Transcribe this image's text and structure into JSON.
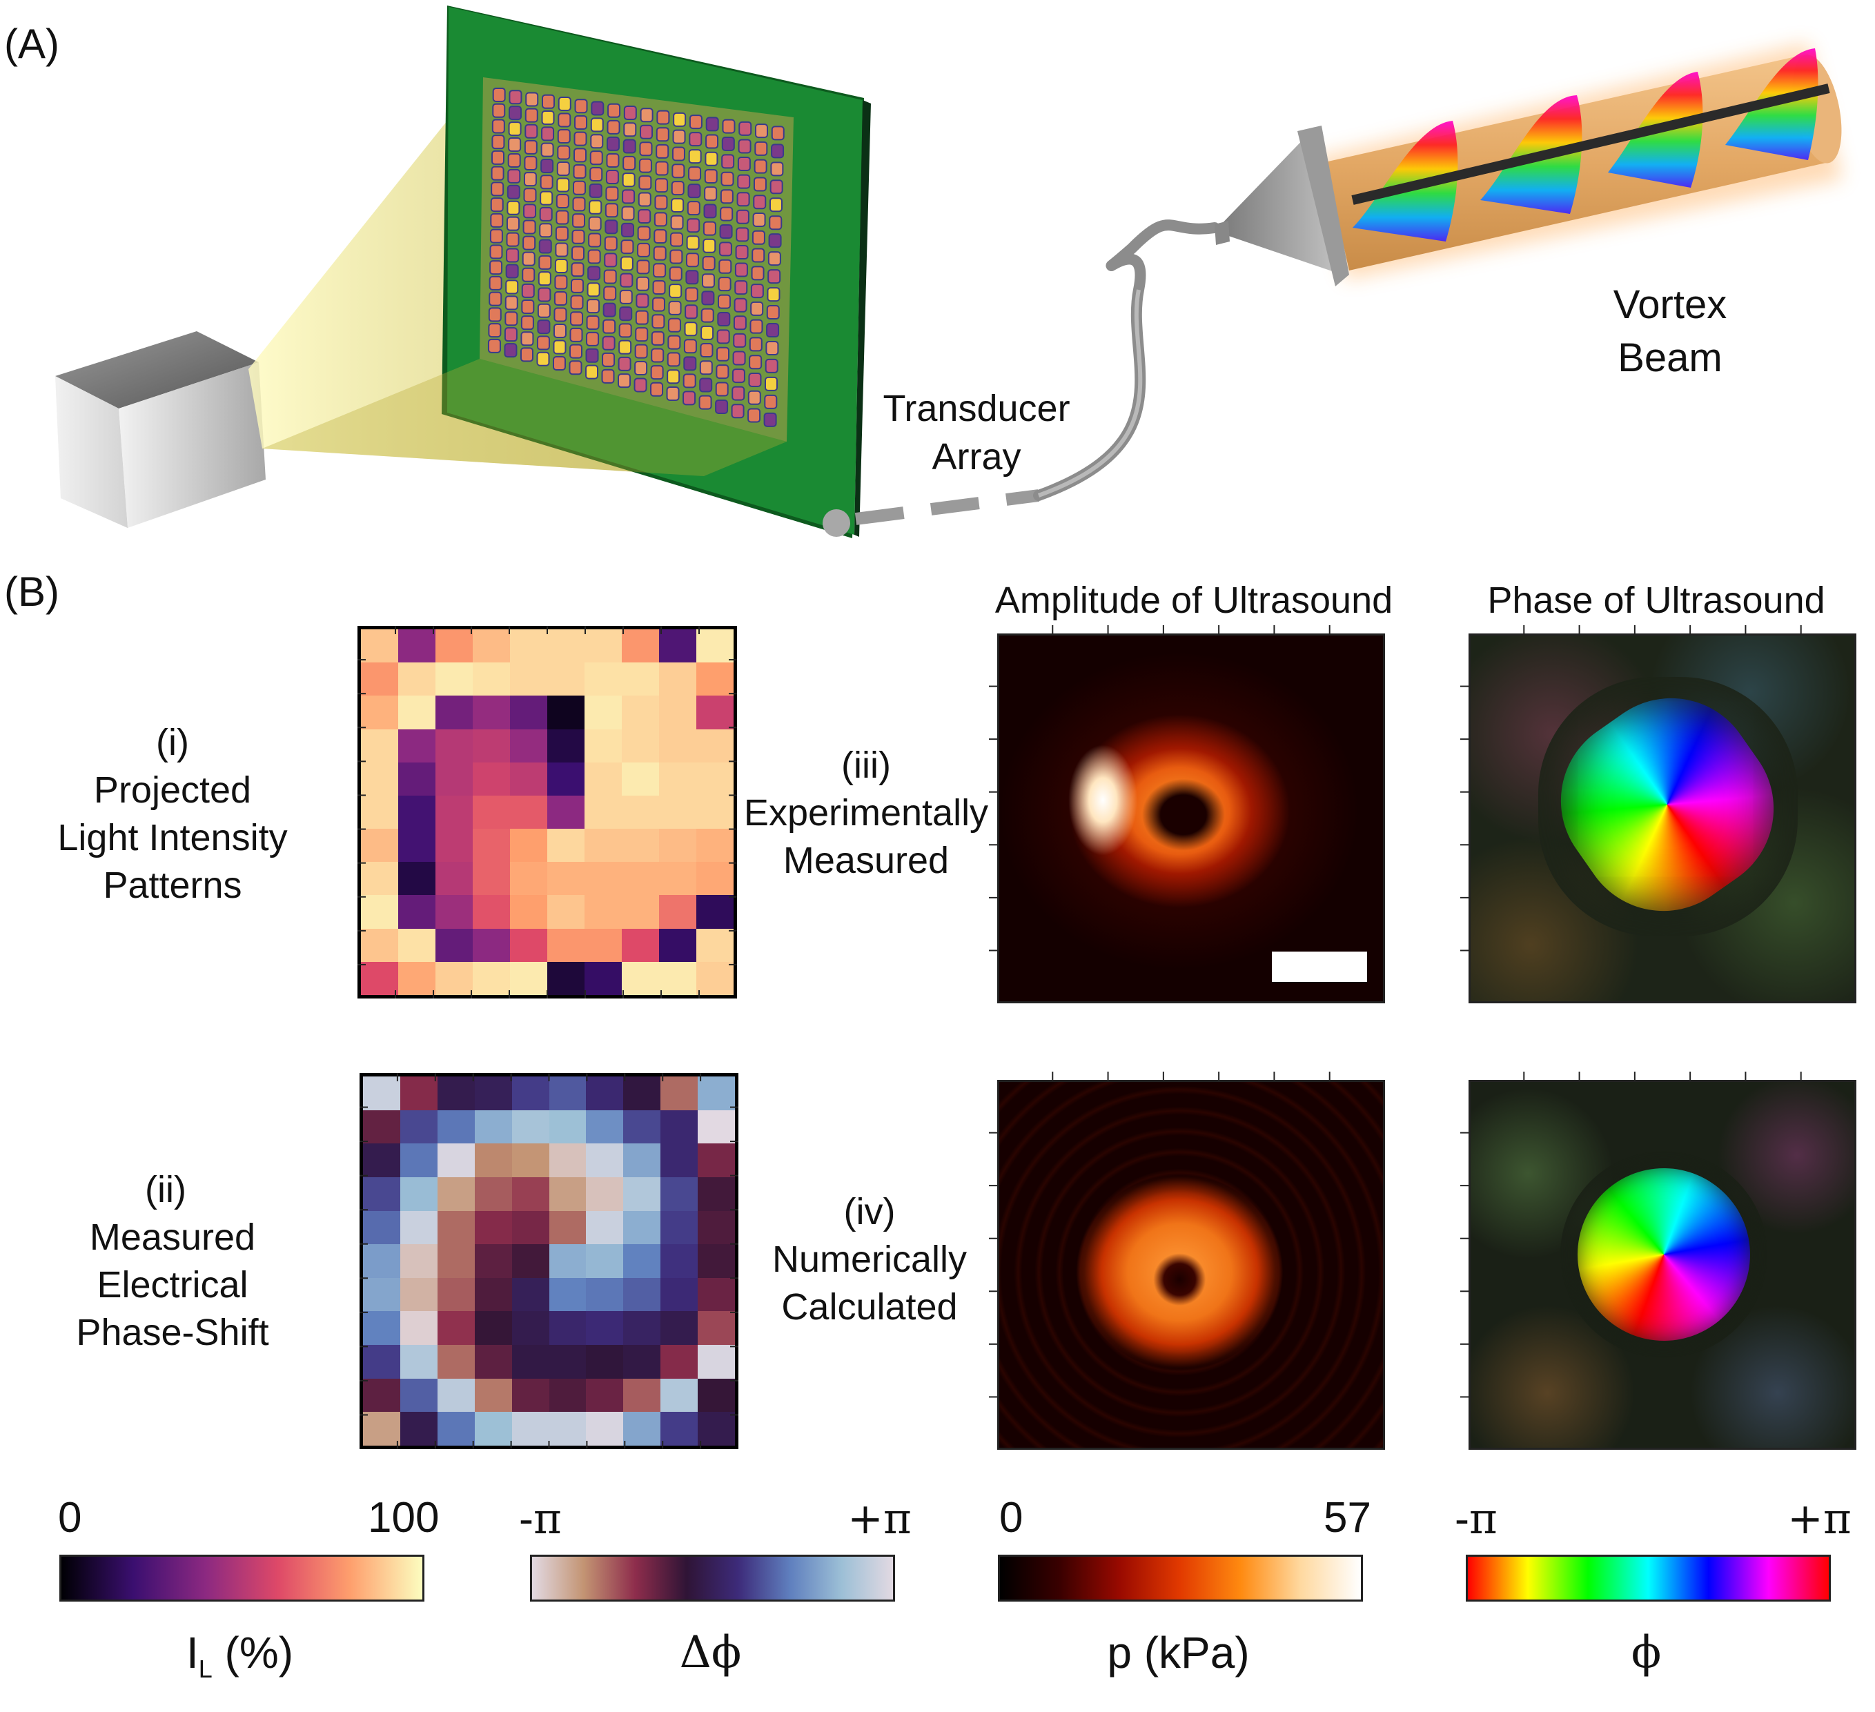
{
  "panel_a": {
    "label": "(A)",
    "transducer_label_1": "Transducer",
    "transducer_label_2": "Array",
    "vortex_label_1": "Vortex",
    "vortex_label_2": "Beam"
  },
  "panel_b": {
    "label": "(B)",
    "col_amplitude": "Amplitude of Ultrasound",
    "col_phase": "Phase of Ultrasound",
    "row_i": [
      "(i)",
      "Projected",
      "Light Intensity",
      "Patterns"
    ],
    "row_ii": [
      "(ii)",
      "Measured",
      "Electrical",
      "Phase-Shift"
    ],
    "row_iii": [
      "(iii)",
      "Experimentally",
      "Measured"
    ],
    "row_iv": [
      "(iv)",
      "Numerically",
      "Calculated"
    ]
  },
  "colorbars": [
    {
      "min": "0",
      "max": "100",
      "title": "I",
      "title_sub": "L",
      "title_rest": " (%)",
      "colors": [
        "#000004",
        "#3b0f70",
        "#8c2981",
        "#de4968",
        "#fe9f6d",
        "#fcfdbf"
      ]
    },
    {
      "min": "-π",
      "max": "+π",
      "title": "Δϕ",
      "colors": [
        "#e2d9e2",
        "#c39473",
        "#8e2d4c",
        "#2f1436",
        "#3d2b7a",
        "#5f7fbe",
        "#9cbfd6",
        "#e2d9e2"
      ]
    },
    {
      "min": "0",
      "max": "57",
      "title": "p (kPa)",
      "colors": [
        "#000000",
        "#3a0000",
        "#9a0a00",
        "#e23a00",
        "#ff8a10",
        "#ffd9a0",
        "#ffffff"
      ]
    },
    {
      "min": "-π",
      "max": "+π",
      "title": "ϕ",
      "colors": [
        "#ff0000",
        "#ffff00",
        "#00ff00",
        "#00ffff",
        "#0000ff",
        "#ff00ff",
        "#ff0000"
      ]
    }
  ],
  "grid_i": [
    [
      88,
      40,
      78,
      86,
      92,
      92,
      92,
      78,
      25,
      96
    ],
    [
      78,
      92,
      96,
      94,
      92,
      92,
      94,
      94,
      90,
      80
    ],
    [
      84,
      96,
      34,
      42,
      30,
      5,
      96,
      92,
      90,
      55
    ],
    [
      92,
      40,
      50,
      52,
      42,
      12,
      94,
      92,
      90,
      90
    ],
    [
      92,
      30,
      50,
      56,
      52,
      20,
      92,
      96,
      92,
      92
    ],
    [
      92,
      22,
      52,
      64,
      64,
      40,
      92,
      92,
      92,
      92
    ],
    [
      86,
      22,
      52,
      66,
      80,
      92,
      88,
      88,
      86,
      84
    ],
    [
      92,
      12,
      50,
      66,
      82,
      84,
      84,
      84,
      84,
      82
    ],
    [
      96,
      30,
      44,
      62,
      80,
      88,
      84,
      84,
      70,
      16
    ],
    [
      88,
      94,
      30,
      40,
      60,
      78,
      78,
      60,
      18,
      92
    ],
    [
      60,
      82,
      90,
      94,
      96,
      10,
      18,
      96,
      96,
      90
    ]
  ],
  "grid_ii": [
    [
      0.95,
      0.3,
      0.48,
      0.5,
      0.6,
      0.65,
      0.55,
      0.45,
      0.2,
      0.82
    ],
    [
      0.35,
      0.62,
      0.7,
      0.82,
      0.88,
      0.86,
      0.75,
      0.62,
      0.55,
      0.0
    ],
    [
      0.48,
      0.7,
      0.98,
      0.16,
      0.14,
      0.05,
      0.95,
      0.8,
      0.55,
      0.32
    ],
    [
      0.62,
      0.85,
      0.12,
      0.22,
      0.26,
      0.12,
      0.05,
      0.9,
      0.62,
      0.4
    ],
    [
      0.68,
      0.95,
      0.2,
      0.3,
      0.32,
      0.2,
      0.95,
      0.82,
      0.6,
      0.38
    ],
    [
      0.78,
      0.05,
      0.2,
      0.36,
      0.4,
      0.82,
      0.84,
      0.72,
      0.58,
      0.4
    ],
    [
      0.8,
      0.08,
      0.22,
      0.38,
      0.5,
      0.72,
      0.7,
      0.66,
      0.56,
      0.34
    ],
    [
      0.72,
      0.02,
      0.28,
      0.42,
      0.48,
      0.54,
      0.56,
      0.52,
      0.48,
      0.25
    ],
    [
      0.6,
      0.9,
      0.2,
      0.36,
      0.46,
      0.46,
      0.44,
      0.46,
      0.3,
      0.98
    ],
    [
      0.36,
      0.66,
      0.92,
      0.18,
      0.35,
      0.38,
      0.34,
      0.22,
      0.9,
      0.42
    ],
    [
      0.12,
      0.48,
      0.7,
      0.86,
      0.94,
      0.94,
      0.98,
      0.8,
      0.6,
      0.48
    ]
  ]
}
